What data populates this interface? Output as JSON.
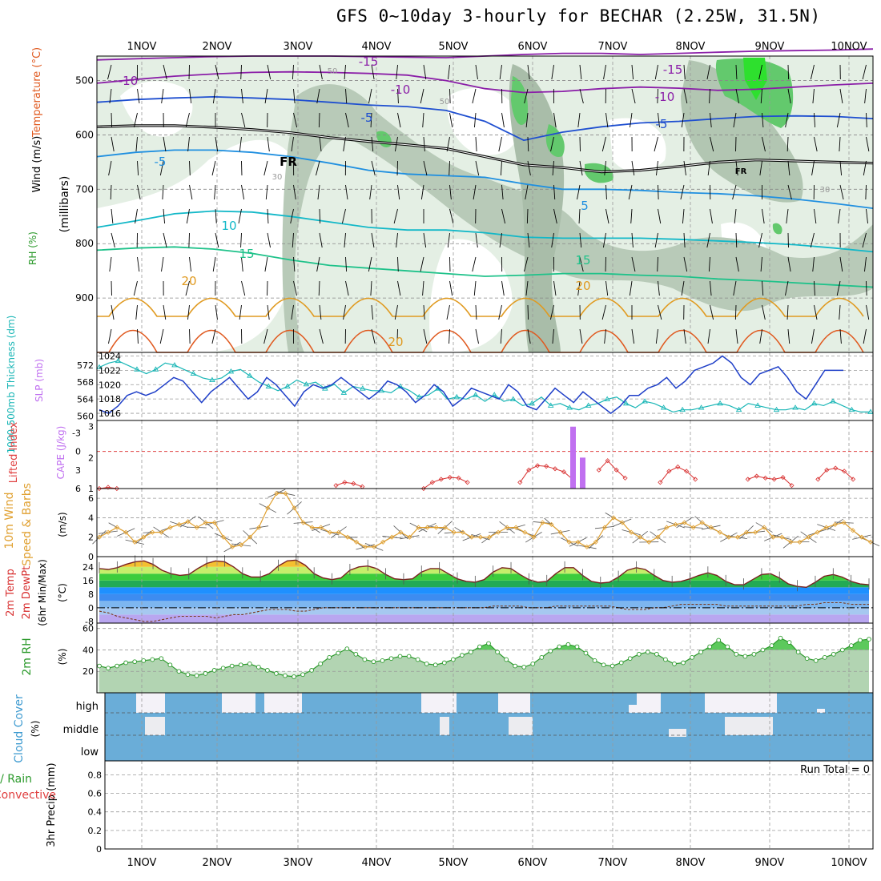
{
  "header": {
    "title": "GFS 0~10day 3-hourly for BECHAR (2.25W, 31.5N)"
  },
  "colors": {
    "temp_purple": "#8b1fa8",
    "temp_blue": "#1f4fd0",
    "temp_lightblue": "#1f8fe0",
    "temp_cyan": "#13b8c8",
    "temp_green": "#1fc28a",
    "temp_orange": "#e09a20",
    "temp_red": "#e05a20",
    "freezing": "#000000",
    "rh_green": "#3fc24a",
    "slp_blue": "#1f3fc8",
    "thickness_cyan": "#19b6b6",
    "li_red": "#d83030",
    "cape_purple": "#c070f0",
    "wind_orange": "#e0a030",
    "rh2m_green": "#2c9a2c",
    "cloud_blue": "#6aadd8"
  },
  "chart_data": [
    {
      "type": "heatmap",
      "name": "upper-air cross section",
      "x": [
        "1NOV",
        "2NOV",
        "3NOV",
        "4NOV",
        "5NOV",
        "6NOV",
        "7NOV",
        "8NOV",
        "9NOV",
        "10NOV"
      ],
      "ylabel": "(millibars)",
      "yticks": [
        "500",
        "600",
        "700",
        "800",
        "900"
      ],
      "ylim": [
        1000,
        450
      ],
      "labels": {
        "ylabel_rh": "RH (%)",
        "ylabel_temp": "Temperature (°C)",
        "ylabel_wind": "Wind (m/s)"
      },
      "contour_labels": [
        "-15",
        "-15",
        "-10",
        "-10",
        "-10",
        "-5",
        "-5",
        "-5",
        "5",
        "5",
        "10",
        "15",
        "15",
        "20",
        "20",
        "20",
        "FR",
        "FR",
        "30",
        "30",
        "50",
        "50"
      ],
      "isotherms": [
        {
          "name": "-15",
          "values_mb": [
            462,
            460,
            458,
            456,
            455,
            455,
            455,
            456,
            457,
            458,
            455,
            452,
            450,
            450,
            452,
            450,
            448,
            446,
            445,
            444,
            442
          ]
        },
        {
          "name": "-10",
          "values_mb": [
            505,
            498,
            492,
            488,
            485,
            484,
            485,
            487,
            490,
            500,
            515,
            522,
            520,
            515,
            512,
            514,
            518,
            516,
            512,
            508,
            505
          ]
        },
        {
          "name": "-5",
          "values_mb": [
            540,
            535,
            532,
            530,
            532,
            535,
            540,
            545,
            548,
            555,
            575,
            610,
            595,
            585,
            578,
            575,
            570,
            566,
            565,
            566,
            570
          ]
        },
        {
          "name": "FR",
          "values_mb": [
            585,
            583,
            583,
            586,
            590,
            596,
            605,
            612,
            618,
            625,
            640,
            655,
            660,
            668,
            665,
            658,
            650,
            646,
            648,
            650,
            652
          ]
        },
        {
          "name": "5",
          "values_mb": [
            640,
            632,
            628,
            628,
            632,
            640,
            652,
            665,
            672,
            675,
            678,
            690,
            700,
            700,
            702,
            706,
            708,
            712,
            718,
            726,
            735
          ]
        },
        {
          "name": "10",
          "values_mb": [
            770,
            758,
            745,
            740,
            742,
            750,
            760,
            770,
            775,
            775,
            780,
            788,
            790,
            790,
            790,
            792,
            795,
            798,
            802,
            808,
            815
          ]
        },
        {
          "name": "15",
          "values_mb": [
            812,
            808,
            806,
            810,
            818,
            830,
            840,
            845,
            850,
            855,
            860,
            858,
            855,
            855,
            858,
            860,
            865,
            868,
            872,
            876,
            880
          ]
        }
      ],
      "rh_high_regions": [
        "5NOV 18Z 650mb",
        "6NOV 12Z 580mb",
        "7NOV 00Z 660mb",
        "8NOV 12Z-9NOV 00Z 480-560mb"
      ]
    },
    {
      "type": "line",
      "name": "thickness and SLP",
      "labels": {
        "left": "1000-500mb Thickness (dm)",
        "right": "SLP (mb)"
      },
      "thickness_yticks": [
        "572",
        "568",
        "564",
        "560"
      ],
      "slp_yticks": [
        "1024",
        "1022",
        "1020",
        "1018",
        "1016"
      ],
      "thickness_ylim": [
        559,
        575
      ],
      "slp_ylim": [
        1015,
        1024.5
      ],
      "thickness_dm": [
        571.5,
        572.5,
        573,
        572,
        571,
        570,
        571,
        572.5,
        572,
        571,
        570,
        569,
        568.5,
        569,
        570.5,
        571,
        569.5,
        568,
        567,
        566,
        567,
        568.5,
        567.5,
        568,
        566.5,
        567.5,
        565.5,
        567,
        566.5,
        566,
        566,
        565.5,
        567,
        566,
        564.5,
        565,
        566.5,
        564,
        564.5,
        564,
        565,
        563.5,
        565,
        563.5,
        564,
        562.5,
        563,
        564.5,
        562.5,
        563,
        562,
        561.5,
        562.5,
        563,
        564,
        564.5,
        563,
        562,
        563.5,
        563,
        562,
        561,
        561.5,
        561.5,
        562,
        562.5,
        563,
        562.5,
        561.5,
        563,
        562.5,
        562,
        561.5,
        561.5,
        562,
        561.5,
        563,
        562.5,
        563.5,
        562.5,
        561.5,
        561,
        561
      ],
      "slp_mb": [
        1016.5,
        1016,
        1017,
        1018.5,
        1019,
        1018.5,
        1019,
        1020,
        1021,
        1020.5,
        1019,
        1017.5,
        1019,
        1020,
        1021,
        1019.5,
        1018,
        1019,
        1021,
        1020,
        1018.5,
        1017,
        1019,
        1020,
        1019.5,
        1020,
        1021,
        1020,
        1019,
        1018,
        1019,
        1020.5,
        1020,
        1019,
        1017.5,
        1018.5,
        1020,
        1019,
        1017,
        1018,
        1019.5,
        1019,
        1018.5,
        1018,
        1020,
        1019,
        1017,
        1016.5,
        1018,
        1019.5,
        1018.5,
        1017.5,
        1019,
        1018,
        1017,
        1016,
        1017,
        1018.5,
        1018.5,
        1019.5,
        1020,
        1021,
        1019.5,
        1020.5,
        1022,
        1022.5,
        1023,
        1024,
        1023,
        1021,
        1020,
        1021.5,
        1022,
        1022.5,
        1021,
        1019,
        1018,
        1020,
        1022,
        1022,
        1022
      ]
    },
    {
      "type": "bar",
      "name": "lifted index and CAPE",
      "labels": {
        "left": "Lifted Index",
        "right": "CAPE (J/kg)"
      },
      "li_yticks": [
        "-3",
        "0",
        "3",
        "6"
      ],
      "cape_yticks": [
        "3",
        "2",
        "1"
      ],
      "li_ylim": [
        6,
        -5
      ],
      "cape_ylim": [
        1,
        3.2
      ],
      "lifted_index": [
        6,
        5.8,
        6,
        6.5,
        6.5,
        6.5,
        6.5,
        6.5,
        6.5,
        6.5,
        6.5,
        6.5,
        6.5,
        6.5,
        6.5,
        6.5,
        6.5,
        6.5,
        6.5,
        6.5,
        6.5,
        6.5,
        6.5,
        6.5,
        6.5,
        6.5,
        6.5,
        5.5,
        5,
        5.2,
        5.7,
        6.5,
        6.5,
        6.5,
        6.5,
        6.5,
        6.5,
        6,
        5,
        4.5,
        4.2,
        4.3,
        5,
        6.5,
        6.5,
        6.5,
        6.5,
        6.5,
        5,
        3,
        2.3,
        2.4,
        2.8,
        3.3,
        4.5,
        6.5,
        6.5,
        3,
        1.5,
        3,
        4.3,
        6.5,
        6.5,
        6.5,
        5,
        3.2,
        2.5,
        3.2,
        4.5,
        6.5,
        6.5,
        6.5,
        6.5,
        6.5,
        4.5,
        4,
        4.3,
        4.5,
        4.2,
        5.5,
        6.5,
        6.5,
        4.5,
        3,
        2.7,
        3.2,
        4.5,
        6.5,
        6.5
      ],
      "cape_jkg_series": [
        "6NOV 12Z: 3.0",
        "6NOV 15Z: 2.0"
      ]
    },
    {
      "type": "line",
      "name": "10m wind",
      "labels": {
        "left": "10m Wind",
        "mid": "Speed & Barbs",
        "unit": "(m/s)"
      },
      "yticks": [
        "6",
        "4",
        "2",
        "0"
      ],
      "ylim": [
        0,
        7
      ],
      "speed_ms": [
        2,
        2.5,
        3,
        2.5,
        1.5,
        2,
        2.5,
        2.5,
        3,
        3.3,
        3.6,
        3,
        3.5,
        3.5,
        2,
        1,
        1.2,
        2,
        3,
        5,
        6.5,
        6.5,
        5,
        3.5,
        3,
        3,
        2.5,
        2.5,
        2,
        1.5,
        1,
        1,
        1.5,
        2,
        2.5,
        2,
        3,
        3,
        3,
        3,
        2.5,
        2.5,
        2,
        2,
        2,
        2.5,
        3,
        3,
        2.5,
        2,
        3.5,
        3.3,
        2.5,
        1.5,
        1.5,
        1,
        1.5,
        3,
        4,
        3.5,
        2.5,
        2,
        1.5,
        2,
        3,
        3.3,
        3.5,
        3,
        3.5,
        3,
        2.5,
        2,
        2,
        2.5,
        2.5,
        3,
        2,
        2,
        1.5,
        1.5,
        2,
        2.5,
        3,
        3.3,
        3.5,
        2.7,
        2,
        1.5
      ]
    },
    {
      "type": "area",
      "name": "2m temperature",
      "labels": {
        "left": "2m Temp",
        "mid": "2m DewPt",
        "sub": "(6hr Min/Max)",
        "unit": "(°C)"
      },
      "yticks": [
        "24",
        "16",
        "8",
        "0",
        "-8"
      ],
      "ylim": [
        -9,
        30
      ],
      "temp_c": [
        23,
        22.5,
        23.5,
        25.5,
        27,
        27.5,
        25.5,
        22,
        20,
        19,
        19.5,
        23,
        26,
        27.5,
        27,
        24,
        20,
        18,
        18,
        20,
        24.5,
        27.5,
        28,
        25,
        20,
        17.5,
        16.5,
        17.5,
        22,
        24,
        24.5,
        23,
        19.5,
        17,
        16.5,
        17,
        21,
        23,
        23,
        20,
        17,
        15.5,
        15,
        16.5,
        21,
        23.5,
        23,
        19.5,
        16.5,
        15,
        15.5,
        20,
        23.5,
        23.5,
        19,
        15.5,
        14.5,
        15,
        18,
        22,
        23.5,
        22.5,
        19,
        16,
        15,
        15.5,
        17,
        19,
        20.5,
        19,
        15.5,
        13.5,
        13.5,
        16.5,
        19.5,
        20,
        17.5,
        14,
        12.5,
        12,
        15,
        18.5,
        19.5,
        18,
        15.5,
        14,
        13.5
      ],
      "dewpt_c": [
        -2,
        -3,
        -5,
        -6,
        -7,
        -8,
        -8,
        -7,
        -6,
        -5,
        -5,
        -5,
        -5,
        -6,
        -5,
        -4,
        -4,
        -3,
        -2,
        -1,
        -1,
        -1,
        -2,
        -2,
        -1,
        0,
        0,
        0,
        0,
        0,
        0,
        0,
        0,
        0,
        0,
        0,
        0,
        0,
        0,
        0,
        0,
        0,
        0,
        0,
        1,
        1,
        1,
        1,
        0,
        0,
        0,
        1,
        1,
        1,
        1,
        1,
        1,
        1,
        0,
        -1,
        -1,
        -1,
        0,
        0,
        1,
        2,
        2,
        2,
        2,
        2,
        1,
        1,
        1,
        1,
        1,
        1,
        1,
        1,
        1,
        2,
        2,
        3,
        3,
        3,
        2,
        2,
        2
      ]
    },
    {
      "type": "area",
      "name": "2m relative humidity",
      "labels": {
        "left": "2m RH",
        "unit": "(%)"
      },
      "yticks": [
        "60",
        "40",
        "20"
      ],
      "ylim": [
        0,
        65
      ],
      "rh_pct": [
        25,
        23,
        25,
        28,
        29,
        30,
        31,
        32,
        26,
        20,
        17,
        16,
        18,
        21,
        23,
        25,
        26,
        27,
        24,
        21,
        18,
        16,
        15,
        17,
        21,
        27,
        33,
        37,
        41,
        36,
        31,
        29,
        30,
        32,
        34,
        34,
        31,
        27,
        26,
        28,
        31,
        35,
        38,
        43,
        46,
        38,
        31,
        25,
        24,
        27,
        33,
        39,
        43,
        45,
        43,
        37,
        30,
        26,
        25,
        28,
        32,
        36,
        38,
        36,
        31,
        27,
        28,
        33,
        38,
        43,
        49,
        43,
        36,
        34,
        36,
        40,
        44,
        51,
        47,
        38,
        32,
        30,
        33,
        36,
        40,
        44,
        49,
        50
      ]
    },
    {
      "type": "heatmap",
      "name": "cloud cover",
      "labels": {
        "left": "Cloud Cover",
        "unit": "(%)"
      },
      "levels": [
        "high",
        "middle",
        "low"
      ],
      "clear_periods": [
        "31OCT 21Z - 1NOV 03Z high",
        "1NOV 00Z - 1NOV 03Z middle",
        "2NOV 12Z - 3NOV 03Z high",
        "4NOV 15Z - 5NOV 06Z high",
        "5NOV 18Z - 5NOV 21Z high",
        "6NOV 12Z - 6NOV 21Z high",
        "7NOV 06Z - 7NOV 12Z high",
        "8NOV 03Z - 9NOV 06Z high",
        "8NOV 12Z - 8NOV 21Z middle"
      ]
    },
    {
      "type": "line",
      "name": "3hr precipitation",
      "labels": {
        "left_green": "Total / Rain",
        "left_red": "Convective",
        "axis": "3hr Precip (mm)",
        "run_total": "Run Total = 0"
      },
      "yticks": [
        "0.8",
        "0.6",
        "0.4",
        "0.2",
        "0"
      ],
      "ylim": [
        0,
        0.95
      ],
      "precip_mm": [
        0,
        0,
        0,
        0,
        0,
        0,
        0,
        0,
        0,
        0,
        0,
        0,
        0,
        0,
        0,
        0,
        0,
        0,
        0,
        0,
        0,
        0,
        0,
        0,
        0,
        0,
        0,
        0,
        0,
        0,
        0,
        0,
        0,
        0,
        0,
        0,
        0,
        0,
        0,
        0,
        0,
        0,
        0,
        0,
        0,
        0,
        0,
        0,
        0,
        0,
        0,
        0,
        0,
        0,
        0,
        0,
        0,
        0,
        0,
        0,
        0,
        0,
        0,
        0,
        0,
        0,
        0,
        0,
        0,
        0,
        0,
        0,
        0,
        0,
        0,
        0,
        0,
        0,
        0,
        0,
        0,
        0,
        0,
        0,
        0,
        0,
        0,
        0
      ]
    }
  ]
}
